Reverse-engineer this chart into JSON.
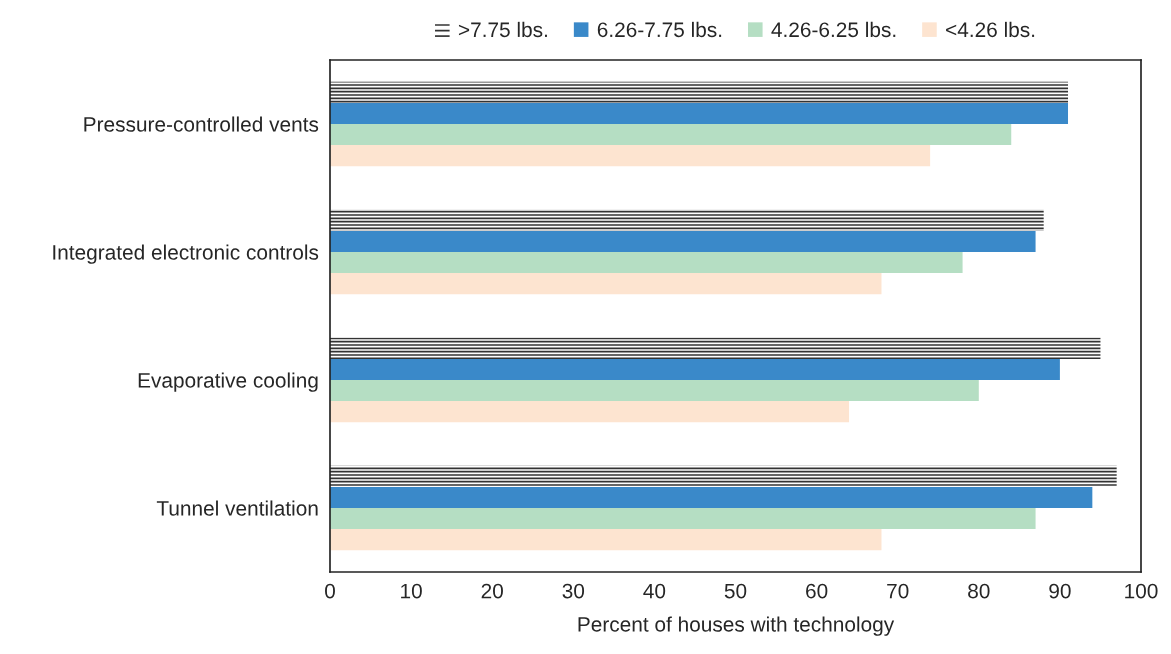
{
  "chart_data": {
    "type": "bar",
    "orientation": "horizontal",
    "xlabel": "Percent of houses with technology",
    "categories": [
      "Pressure-controlled vents",
      "Integrated electronic controls",
      "Evaporative cooling",
      "Tunnel ventilation"
    ],
    "series": [
      {
        "name": ">7.75 lbs.",
        "color": "#ffffff",
        "values": [
          91,
          88,
          95,
          97
        ]
      },
      {
        "name": "6.26-7.75 lbs.",
        "color": "#3a89c9",
        "values": [
          91,
          87,
          90,
          94
        ]
      },
      {
        "name": "4.26-6.25 lbs.",
        "color": "#b5dec3",
        "values": [
          84,
          78,
          80,
          87
        ]
      },
      {
        "name": "<4.26 lbs.",
        "color": "#fde4d0",
        "values": [
          74,
          68,
          64,
          68
        ]
      }
    ],
    "xlim": [
      0,
      100
    ],
    "xticks": [
      0,
      10,
      20,
      30,
      40,
      50,
      60,
      70,
      80,
      90,
      100
    ],
    "grid": false,
    "legend": "top"
  }
}
